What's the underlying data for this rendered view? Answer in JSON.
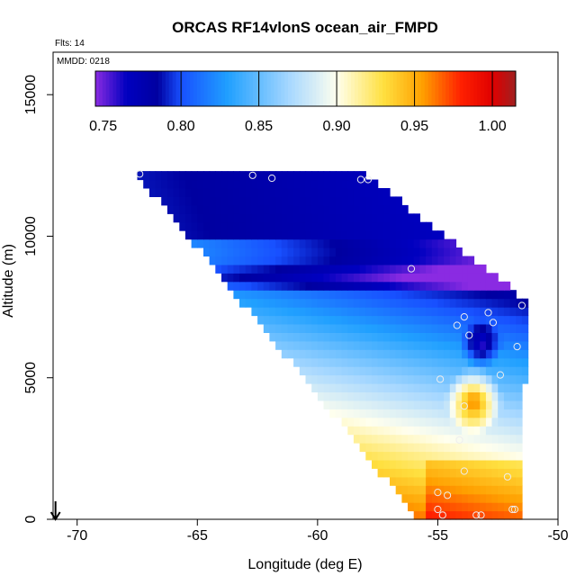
{
  "chart_data": {
    "type": "heatmap",
    "title": "ORCAS RF14vlonS ocean_air_FMPD",
    "annotations": {
      "flights": "Flts: 14",
      "date": "MMDD: 0218"
    },
    "xlabel": "Longitude (deg E)",
    "ylabel": "Altitude (m)",
    "xlim": [
      -71,
      -50
    ],
    "ylim": [
      0,
      16500
    ],
    "x_ticks": [
      -70,
      -65,
      -60,
      -55,
      -50
    ],
    "x_tick_labels": [
      "-70",
      "-65",
      "-60",
      "-55",
      "-50"
    ],
    "y_ticks": [
      0,
      5000,
      10000,
      15000
    ],
    "y_tick_labels": [
      "0",
      "5000",
      "10000",
      "15000"
    ],
    "colorbar": {
      "range": [
        0.745,
        1.015
      ],
      "ticks": [
        0.75,
        0.8,
        0.85,
        0.9,
        0.95,
        1.0
      ],
      "tick_labels": [
        "0.75",
        "0.80",
        "0.85",
        "0.90",
        "0.95",
        "1.00"
      ],
      "stops": [
        {
          "v": 0.745,
          "c": "#8a2be2"
        },
        {
          "v": 0.765,
          "c": "#0000c0"
        },
        {
          "v": 0.785,
          "c": "#0000a0"
        },
        {
          "v": 0.8,
          "c": "#1850ff"
        },
        {
          "v": 0.83,
          "c": "#20a0ff"
        },
        {
          "v": 0.87,
          "c": "#a8d8ff"
        },
        {
          "v": 0.9,
          "c": "#ffffee"
        },
        {
          "v": 0.93,
          "c": "#ffe040"
        },
        {
          "v": 0.955,
          "c": "#ffa000"
        },
        {
          "v": 0.98,
          "c": "#ff2000"
        },
        {
          "v": 1.0,
          "c": "#e00000"
        },
        {
          "v": 1.015,
          "c": "#a02020"
        }
      ]
    },
    "field_extent": {
      "left_edge": [
        [
          -67.5,
          12200
        ],
        [
          -55.8,
          0
        ]
      ],
      "right_edge": [
        [
          -58,
          12200
        ],
        [
          -51.3,
          7700
        ],
        [
          -51.5,
          0
        ]
      ]
    },
    "flight_points": [
      {
        "lon": -67.4,
        "alt": 12200
      },
      {
        "lon": -62.7,
        "alt": 12150
      },
      {
        "lon": -61.9,
        "alt": 12050
      },
      {
        "lon": -58.2,
        "alt": 12000
      },
      {
        "lon": -57.9,
        "alt": 12000
      },
      {
        "lon": -56.1,
        "alt": 8850
      },
      {
        "lon": -51.5,
        "alt": 7550
      },
      {
        "lon": -52.9,
        "alt": 7300
      },
      {
        "lon": -52.7,
        "alt": 6950
      },
      {
        "lon": -53.9,
        "alt": 7150
      },
      {
        "lon": -54.2,
        "alt": 6850
      },
      {
        "lon": -53.7,
        "alt": 6500
      },
      {
        "lon": -51.7,
        "alt": 6100
      },
      {
        "lon": -52.4,
        "alt": 5100
      },
      {
        "lon": -54.9,
        "alt": 4950
      },
      {
        "lon": -53.9,
        "alt": 4000
      },
      {
        "lon": -54.1,
        "alt": 2800
      },
      {
        "lon": -53.9,
        "alt": 1700
      },
      {
        "lon": -52.1,
        "alt": 1500
      },
      {
        "lon": -55.0,
        "alt": 950
      },
      {
        "lon": -54.6,
        "alt": 850
      },
      {
        "lon": -55.0,
        "alt": 350
      },
      {
        "lon": -53.4,
        "alt": 150
      },
      {
        "lon": -53.2,
        "alt": 150
      },
      {
        "lon": -51.9,
        "alt": 350
      },
      {
        "lon": -51.8,
        "alt": 350
      },
      {
        "lon": -54.8,
        "alt": 150
      }
    ],
    "marker": {
      "type": "arrow-down",
      "lon": -70.9
    }
  }
}
